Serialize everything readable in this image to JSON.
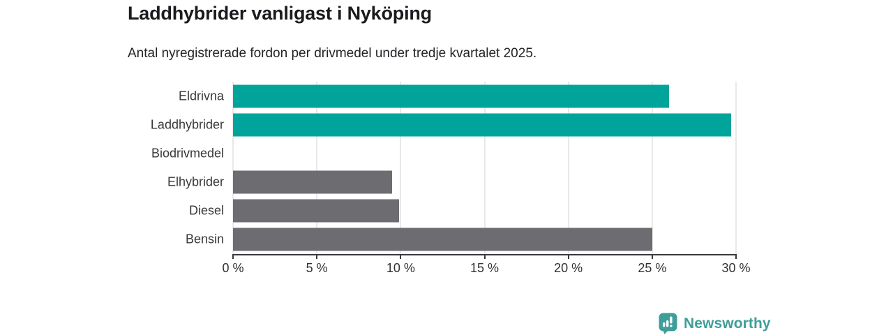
{
  "header": {
    "title": "Laddhybrider vanligast i Nyköping",
    "subtitle": "Antal nyregistrerade fordon per drivmedel under tredje kvartalet 2025."
  },
  "chart_data": {
    "type": "bar",
    "orientation": "horizontal",
    "title": "Laddhybrider vanligast i Nyköping",
    "subtitle": "Antal nyregistrerade fordon per drivmedel under tredje kvartalet 2025.",
    "categories": [
      "Eldrivna",
      "Laddhybrider",
      "Biodrivmedel",
      "Elhybrider",
      "Diesel",
      "Bensin"
    ],
    "values": [
      26,
      29.7,
      0,
      9.5,
      9.9,
      25
    ],
    "unit": "%",
    "xlim": [
      0,
      30
    ],
    "xticks": [
      0,
      5,
      10,
      15,
      20,
      25,
      30
    ],
    "xtick_labels": [
      "0 %",
      "5 %",
      "10 %",
      "15 %",
      "20 %",
      "25 %",
      "30 %"
    ],
    "grid": true,
    "legend": "none",
    "bar_colors": [
      "#00a49b",
      "#00a49b",
      "#6c6c71",
      "#6c6c71",
      "#6c6c71",
      "#6c6c71"
    ],
    "highlight_color": "#00a49b",
    "default_color": "#6c6c71"
  },
  "branding": {
    "logo_text": "Newsworthy",
    "logo_icon": "bar-chart-speech-bubble-icon",
    "logo_color": "#3f9e99"
  }
}
